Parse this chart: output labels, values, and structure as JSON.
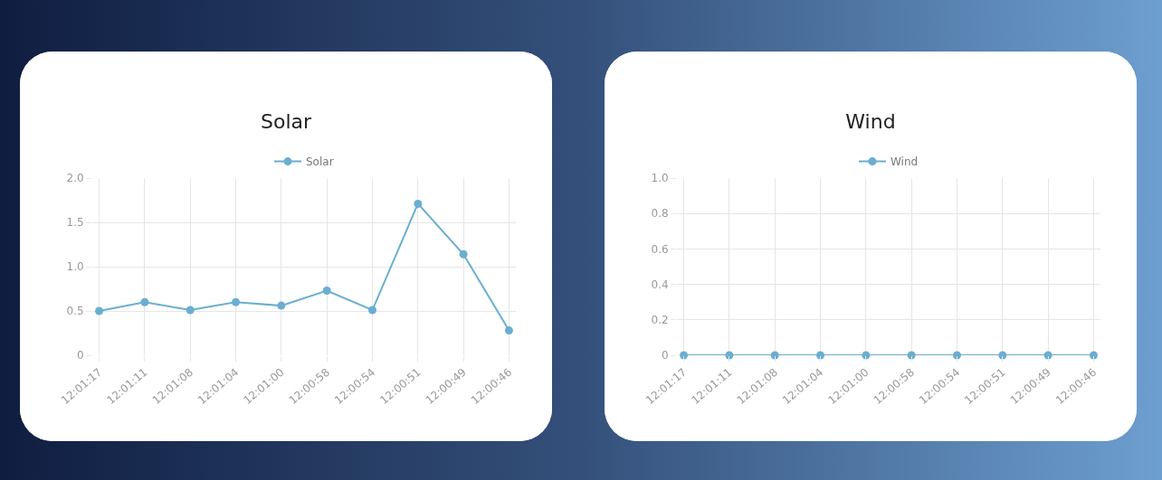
{
  "chart_data": [
    {
      "type": "line",
      "title": "Solar",
      "categories": [
        "12:01:17",
        "12:01:11",
        "12:01:08",
        "12:01:04",
        "12:01:00",
        "12:00:58",
        "12:00:54",
        "12:00:51",
        "12:00:49",
        "12:00:46"
      ],
      "series": [
        {
          "name": "Solar",
          "color": "#6aaed0",
          "values": [
            0.5,
            0.6,
            0.51,
            0.6,
            0.56,
            0.73,
            0.51,
            1.71,
            1.14,
            0.28
          ]
        }
      ],
      "ylim": [
        0,
        2
      ],
      "yticks": [
        0,
        {
          "value": 0.5,
          "label": "0.5"
        },
        {
          "value": 1,
          "label": "1.0"
        },
        {
          "value": 1.5,
          "label": "1.5"
        },
        {
          "value": 2,
          "label": "2.0"
        }
      ],
      "grid": true,
      "legend": "top",
      "marker": "circle",
      "line_style": "solid"
    },
    {
      "type": "line",
      "title": "Wind",
      "categories": [
        "12:01:17",
        "12:01:11",
        "12:01:08",
        "12:01:04",
        "12:01:00",
        "12:00:58",
        "12:00:54",
        "12:00:51",
        "12:00:49",
        "12:00:46"
      ],
      "series": [
        {
          "name": "Wind",
          "color": "#6aaed0",
          "values": [
            0,
            0,
            0,
            0,
            0,
            0,
            0,
            0,
            0,
            0
          ]
        }
      ],
      "ylim": [
        0,
        1
      ],
      "yticks": [
        0,
        {
          "value": 0.2,
          "label": "0.2"
        },
        {
          "value": 0.4,
          "label": "0.4"
        },
        {
          "value": 0.6,
          "label": "0.6"
        },
        {
          "value": 0.8,
          "label": "0.8"
        },
        {
          "value": 1,
          "label": "1.0"
        }
      ],
      "grid": true,
      "legend": "top",
      "marker": "circle",
      "line_style": "solid"
    }
  ]
}
